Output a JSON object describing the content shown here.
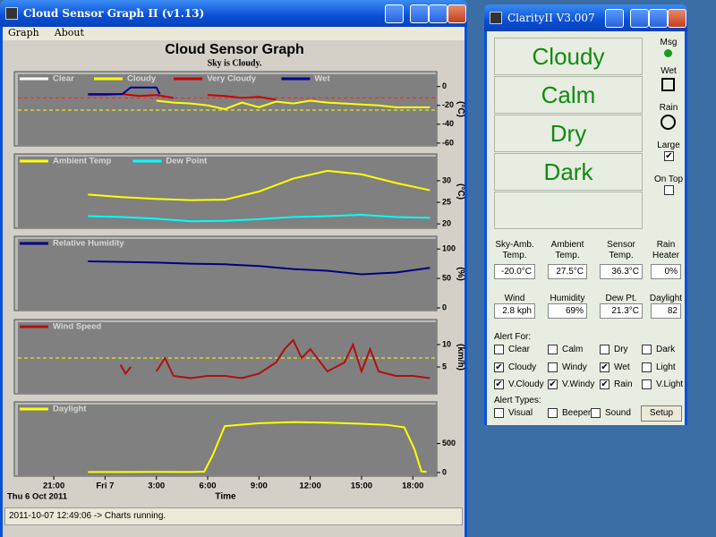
{
  "left_window": {
    "title": "Cloud Sensor Graph II (v1.13)",
    "menu": [
      "Graph",
      "About"
    ],
    "graph_title": "Cloud Sensor Graph",
    "graph_subtitle": "Sky is Cloudy.",
    "status": "2011-10-07 12:49:06 -> Charts running."
  },
  "chart_data": [
    {
      "type": "line",
      "xlim": [
        -5.1,
        19.4
      ],
      "ylim": [
        -62,
        13
      ],
      "yticks": [
        0,
        -20,
        -40,
        -60
      ],
      "ylabel": "(°C)",
      "threshold_lines": [
        {
          "value": -12,
          "color": "#ff2020"
        },
        {
          "value": -25,
          "color": "#ffff00"
        }
      ],
      "series": [
        {
          "name": "Clear",
          "color": "#ffffff",
          "x": [],
          "values": []
        },
        {
          "name": "Cloudy",
          "color": "#ffff00",
          "x": [
            3,
            4,
            5,
            6,
            7,
            8,
            9,
            10,
            11,
            12,
            13,
            14,
            15,
            16,
            17,
            18,
            19
          ],
          "values": [
            -15,
            -17,
            -18,
            -20,
            -24,
            -17,
            -22,
            -16,
            -18,
            -15,
            -17,
            -18,
            -19,
            -20,
            -22,
            -22,
            -22
          ]
        },
        {
          "name": "Very Cloudy",
          "color": "#cc0000",
          "x": [
            -1,
            0,
            1,
            2,
            3,
            4,
            5,
            6,
            7,
            8,
            9,
            10
          ],
          "values": [
            -9,
            -9,
            -8,
            -10,
            -9,
            -12,
            null,
            -9,
            -10,
            -12,
            -11,
            -14
          ]
        },
        {
          "name": "Wet",
          "color": "#000099",
          "x": [
            -1,
            0,
            1,
            1.5,
            2,
            2.5,
            3,
            3.2
          ],
          "values": [
            -8,
            -8,
            -8,
            -1,
            -1,
            -1,
            -1,
            -8
          ]
        }
      ]
    },
    {
      "type": "line",
      "xlim": [
        -5.1,
        19.4
      ],
      "ylim": [
        19.2,
        35.6
      ],
      "yticks": [
        20,
        25,
        30
      ],
      "ylabel": "(°C)",
      "series": [
        {
          "name": "Ambient Temp",
          "color": "#ffff00",
          "x": [
            -1,
            1,
            3,
            5,
            7,
            9,
            11,
            13,
            15,
            17,
            19
          ],
          "values": [
            26.8,
            26.2,
            25.8,
            25.5,
            25.6,
            27.5,
            30.5,
            32.3,
            31.5,
            29.5,
            27.8
          ]
        },
        {
          "name": "Dew Point",
          "color": "#00ffff",
          "x": [
            -1,
            1,
            3,
            5,
            7,
            9,
            11,
            13,
            15,
            17,
            19
          ],
          "values": [
            21.8,
            21.6,
            21.2,
            20.6,
            20.7,
            21.1,
            21.6,
            21.8,
            22.1,
            21.6,
            21.4
          ]
        }
      ]
    },
    {
      "type": "line",
      "xlim": [
        -5.1,
        19.4
      ],
      "ylim": [
        -3,
        117
      ],
      "yticks": [
        0,
        50,
        100
      ],
      "ylabel": "(%)",
      "series": [
        {
          "name": "Relative Humidity",
          "color": "#000080",
          "x": [
            -1,
            1,
            3,
            5,
            7,
            9,
            11,
            13,
            15,
            17,
            19
          ],
          "values": [
            79,
            78,
            77,
            75,
            74,
            71,
            66,
            63,
            57,
            60,
            68
          ]
        }
      ]
    },
    {
      "type": "line",
      "xlim": [
        -5.1,
        19.4
      ],
      "ylim": [
        -0.8,
        15
      ],
      "yticks": [
        5,
        10
      ],
      "ylabel": "(km/h)",
      "threshold_lines": [
        {
          "value": 7,
          "color": "#ffff00"
        }
      ],
      "series": [
        {
          "name": "Wind Speed",
          "color": "#b01010",
          "x": [
            0.9,
            1.2,
            1.5,
            2.2,
            3,
            3.5,
            4,
            5,
            6,
            7,
            8,
            9,
            10,
            10.5,
            11,
            11.5,
            12,
            13,
            14,
            14.5,
            15,
            15.5,
            16,
            17,
            18,
            19
          ],
          "values": [
            5.5,
            3.5,
            5,
            null,
            4,
            7,
            3,
            2.5,
            3,
            3,
            2.5,
            3.5,
            6,
            9,
            11,
            7,
            9,
            4,
            6,
            10,
            4,
            9,
            4,
            3,
            3,
            2.5
          ]
        }
      ]
    },
    {
      "type": "line",
      "xlim": [
        -5.1,
        19.4
      ],
      "ylim": [
        -47,
        1172
      ],
      "yticks": [
        0,
        500
      ],
      "xticks": [
        {
          "value": -3,
          "label": "21:00"
        },
        {
          "value": 0,
          "label": "Fri 7"
        },
        {
          "value": 3,
          "label": "3:00"
        },
        {
          "value": 6,
          "label": "6:00"
        },
        {
          "value": 9,
          "label": "9:00"
        },
        {
          "value": 12,
          "label": "12:00"
        },
        {
          "value": 15,
          "label": "15:00"
        },
        {
          "value": 18,
          "label": "18:00"
        }
      ],
      "xlabel": "Time",
      "date_label": "Thu 6 Oct 2011",
      "series": [
        {
          "name": "Daylight",
          "color": "#ffff00",
          "x": [
            -1,
            1,
            3,
            5,
            5.8,
            6.3,
            7,
            9,
            11,
            13,
            15,
            16.5,
            17.5,
            18.1,
            18.5,
            18.8
          ],
          "values": [
            8,
            8,
            10,
            8,
            15,
            300,
            800,
            850,
            870,
            860,
            840,
            820,
            780,
            400,
            20,
            10
          ]
        }
      ]
    }
  ],
  "right_window": {
    "title": "ClarityII  V3.007",
    "conditions": [
      "Cloudy",
      "Calm",
      "Dry",
      "Dark"
    ],
    "indicators": {
      "msg": "Msg",
      "wet": "Wet",
      "rain": "Rain",
      "large": {
        "label": "Large",
        "checked": true
      },
      "on_top": {
        "label": "On Top",
        "checked": false
      }
    },
    "readings": [
      {
        "label": "Sky-Amb.\nTemp.",
        "value": "-20.0°C"
      },
      {
        "label": "Ambient\nTemp.",
        "value": "27.5°C"
      },
      {
        "label": "Sensor\nTemp.",
        "value": "36.3°C"
      },
      {
        "label": "Rain\nHeater",
        "value": "0%"
      },
      {
        "label": "Wind",
        "value": "2.8 kph"
      },
      {
        "label": "Humidity",
        "value": "69%"
      },
      {
        "label": "Dew Pt.",
        "value": "21.3°C"
      },
      {
        "label": "Daylight",
        "value": "82"
      }
    ],
    "alert_for_label": "Alert For:",
    "alert_for": [
      {
        "label": "Clear",
        "checked": false
      },
      {
        "label": "Calm",
        "checked": false
      },
      {
        "label": "Dry",
        "checked": false
      },
      {
        "label": "Dark",
        "checked": false
      },
      {
        "label": "Cloudy",
        "checked": true
      },
      {
        "label": "Windy",
        "checked": false
      },
      {
        "label": "Wet",
        "checked": true
      },
      {
        "label": "Light",
        "checked": false
      },
      {
        "label": "V.Cloudy",
        "checked": true
      },
      {
        "label": "V.Windy",
        "checked": true
      },
      {
        "label": "Rain",
        "checked": true
      },
      {
        "label": "V.Light",
        "checked": false
      }
    ],
    "alert_types_label": "Alert Types:",
    "alert_types": [
      {
        "label": "Visual",
        "checked": false
      },
      {
        "label": "Beeper",
        "checked": false
      },
      {
        "label": "Sound",
        "checked": false
      }
    ],
    "setup": "Setup"
  }
}
